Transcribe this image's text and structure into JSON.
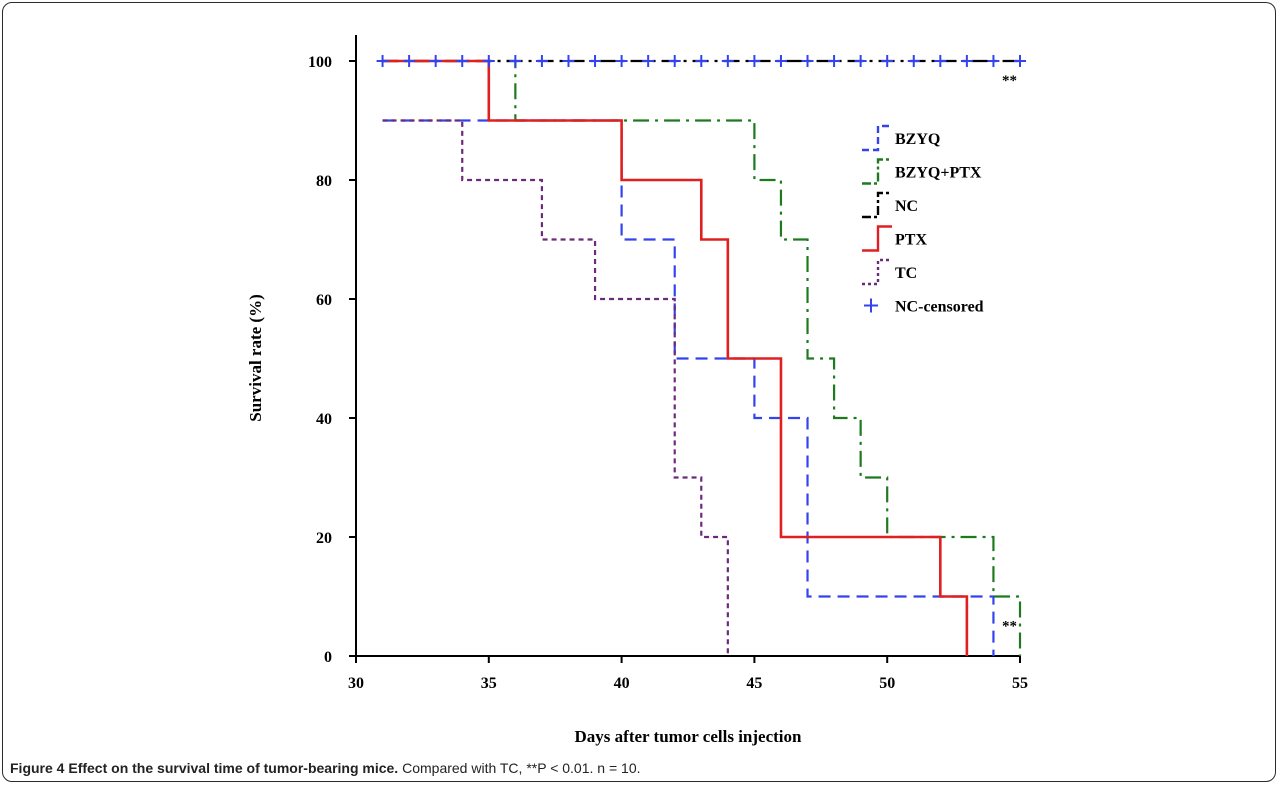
{
  "figure": {
    "caption_label": "Figure 4",
    "caption_title": "Effect on the survival time of tumor-bearing mice.",
    "caption_text": "Compared with TC, **P < 0.01. n = 10."
  },
  "chart_data": {
    "type": "line",
    "subtype": "kaplan-meier step",
    "xlabel": "Days after tumor cells injection",
    "ylabel": "Survival rate (%)",
    "xlim": [
      30,
      55
    ],
    "ylim": [
      0,
      100
    ],
    "xticks": [
      30,
      35,
      40,
      45,
      50,
      55
    ],
    "yticks": [
      0,
      20,
      40,
      60,
      80,
      100
    ],
    "grid": false,
    "legend_position": "upper-right",
    "annotations": [
      {
        "text": "**",
        "x": 55,
        "y": 100
      },
      {
        "text": "**",
        "x": 55,
        "y": 5
      }
    ],
    "series": [
      {
        "name": "BZYQ",
        "color": "#3344ee",
        "dash": "12,7",
        "x": [
          31,
          35,
          40,
          42,
          45,
          47,
          54
        ],
        "y": [
          90,
          90,
          70,
          50,
          40,
          10,
          0
        ]
      },
      {
        "name": "BZYQ+PTX",
        "color": "#1e7a1e",
        "dash": "16,6,3,6",
        "x": [
          31,
          36,
          45,
          46,
          47,
          48,
          49,
          50,
          54,
          55
        ],
        "y": [
          100,
          90,
          80,
          70,
          50,
          40,
          30,
          20,
          10,
          0
        ]
      },
      {
        "name": "NC",
        "color": "#000000",
        "dash": "16,6,3,6",
        "x": [
          31,
          55
        ],
        "y": [
          100,
          100
        ]
      },
      {
        "name": "PTX",
        "color": "#e02020",
        "dash": "",
        "x": [
          31,
          35,
          40,
          43,
          44,
          46,
          52,
          53
        ],
        "y": [
          100,
          90,
          80,
          70,
          50,
          20,
          10,
          0
        ]
      },
      {
        "name": "TC",
        "color": "#6b2a7a",
        "dash": "5,4",
        "x": [
          31,
          34,
          37,
          39,
          42,
          43,
          44
        ],
        "y": [
          90,
          80,
          70,
          60,
          30,
          20,
          0
        ]
      },
      {
        "name": "NC-censored",
        "color": "#3344ee",
        "marker": "+",
        "x": [
          31,
          32,
          33,
          34,
          35,
          36,
          37,
          38,
          39,
          40,
          41,
          42,
          43,
          44,
          45,
          46,
          47,
          48,
          49,
          50,
          51,
          52,
          53,
          54,
          55
        ],
        "y": [
          100,
          100,
          100,
          100,
          100,
          100,
          100,
          100,
          100,
          100,
          100,
          100,
          100,
          100,
          100,
          100,
          100,
          100,
          100,
          100,
          100,
          100,
          100,
          100,
          100
        ]
      }
    ]
  }
}
